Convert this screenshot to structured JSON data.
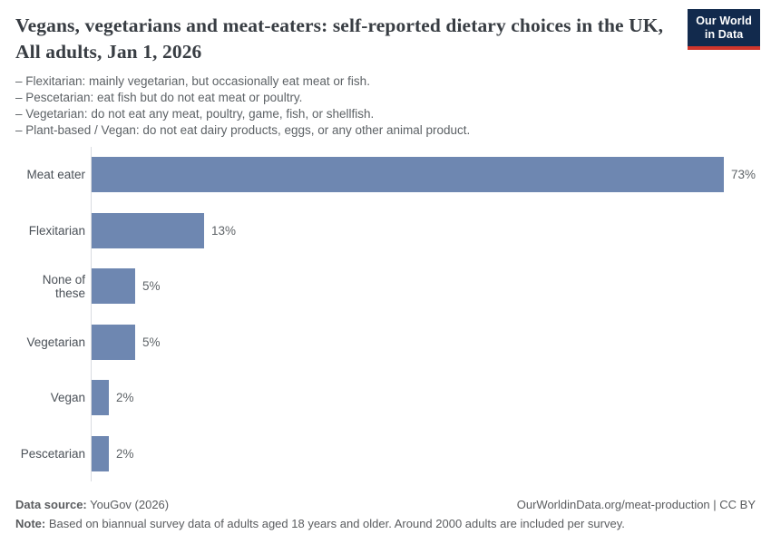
{
  "header": {
    "title": "Vegans, vegetarians and meat-eaters: self-reported dietary choices in the UK, All adults, Jan 1, 2026",
    "subtitle_lines": [
      "– Flexitarian: mainly vegetarian, but occasionally eat meat or fish.",
      "– Pescetarian: eat fish but do not eat meat or poultry.",
      "– Vegetarian: do not eat any meat, poultry, game, fish, or shellfish.",
      "– Plant-based / Vegan: do not eat dairy products, eggs, or any other animal product."
    ]
  },
  "logo": {
    "line1": "Our World",
    "line2": "in Data",
    "bg_color": "#122a4d",
    "accent_color": "#d0362c"
  },
  "chart_data": {
    "type": "bar",
    "orientation": "horizontal",
    "title": "Vegans, vegetarians and meat-eaters: self-reported dietary choices in the UK, All adults, Jan 1, 2026",
    "categories": [
      "Meat eater",
      "Flexitarian",
      "None of these",
      "Vegetarian",
      "Vegan",
      "Pescetarian"
    ],
    "values": [
      73,
      13,
      5,
      5,
      2,
      2
    ],
    "value_labels": [
      "73%",
      "13%",
      "5%",
      "5%",
      "2%",
      "2%"
    ],
    "unit": "%",
    "bar_color": "#6e87b1",
    "axis": {
      "x_axis_visible": false,
      "y_axis_line_color": "#d9dce0",
      "grid": false
    },
    "legend": "none"
  },
  "footer": {
    "source_label": "Data source:",
    "source_value": "YouGov (2026)",
    "attribution": "OurWorldinData.org/meat-production | CC BY",
    "note_label": "Note:",
    "note_value": "Based on biannual survey data of adults aged 18 years and older. Around 2000 adults are included per survey."
  }
}
